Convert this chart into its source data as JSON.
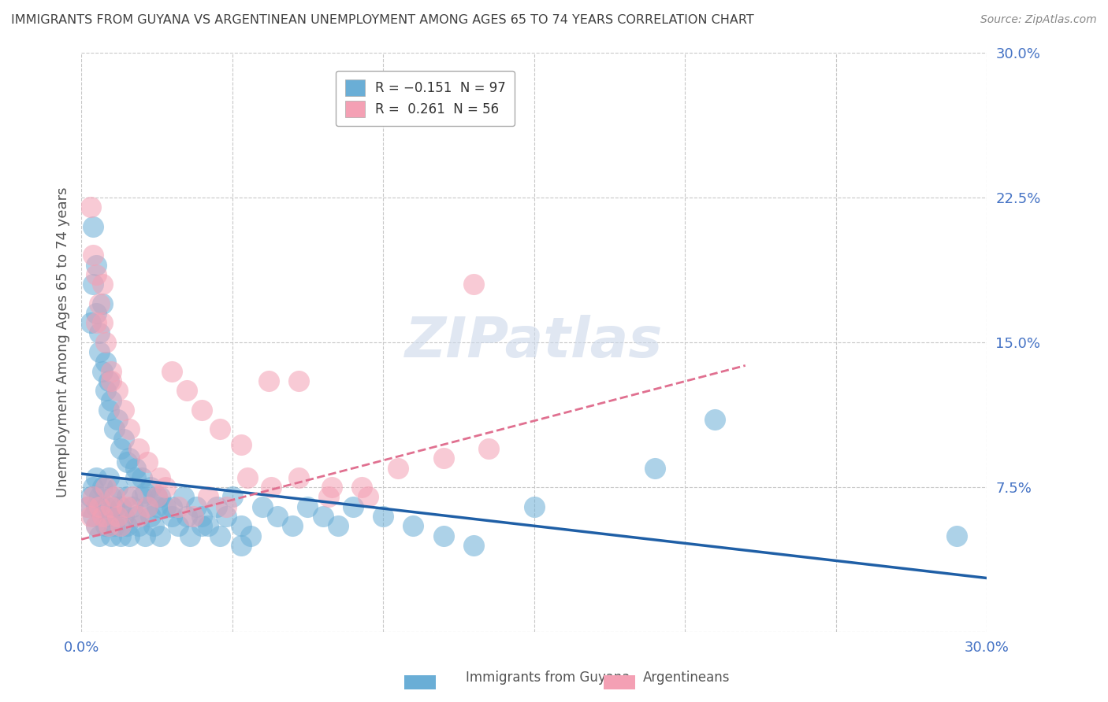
{
  "title": "IMMIGRANTS FROM GUYANA VS ARGENTINEAN UNEMPLOYMENT AMONG AGES 65 TO 74 YEARS CORRELATION CHART",
  "source": "Source: ZipAtlas.com",
  "ylabel": "Unemployment Among Ages 65 to 74 years",
  "xlim": [
    0.0,
    0.3
  ],
  "ylim": [
    0.0,
    0.3
  ],
  "xtick_positions": [
    0.0,
    0.05,
    0.1,
    0.15,
    0.2,
    0.25,
    0.3
  ],
  "ytick_positions": [
    0.0,
    0.075,
    0.15,
    0.225,
    0.3
  ],
  "xtick_labels": [
    "0.0%",
    "",
    "",
    "",
    "",
    "",
    "30.0%"
  ],
  "ytick_labels": [
    "",
    "7.5%",
    "15.0%",
    "22.5%",
    "30.0%"
  ],
  "blue_R": -0.151,
  "blue_N": 97,
  "pink_R": 0.261,
  "pink_N": 56,
  "blue_color": "#6aaed6",
  "pink_color": "#f4a0b4",
  "blue_line_color": "#1f5fa6",
  "pink_line_color": "#e07090",
  "watermark": "ZIPatlas",
  "background_color": "#ffffff",
  "grid_color": "#c8c8c8",
  "blue_line_y0": 0.082,
  "blue_line_y1": 0.028,
  "pink_line_x0": 0.0,
  "pink_line_x1": 0.22,
  "pink_line_y0": 0.048,
  "pink_line_y1": 0.138,
  "blue_scatter_x": [
    0.002,
    0.003,
    0.004,
    0.004,
    0.005,
    0.005,
    0.005,
    0.006,
    0.006,
    0.007,
    0.007,
    0.008,
    0.008,
    0.009,
    0.009,
    0.01,
    0.01,
    0.011,
    0.011,
    0.012,
    0.012,
    0.013,
    0.013,
    0.014,
    0.015,
    0.015,
    0.016,
    0.017,
    0.018,
    0.019,
    0.02,
    0.021,
    0.022,
    0.023,
    0.024,
    0.025,
    0.026,
    0.028,
    0.03,
    0.032,
    0.034,
    0.036,
    0.038,
    0.04,
    0.042,
    0.045,
    0.048,
    0.05,
    0.053,
    0.056,
    0.06,
    0.065,
    0.07,
    0.075,
    0.08,
    0.085,
    0.09,
    0.1,
    0.11,
    0.12,
    0.003,
    0.004,
    0.005,
    0.006,
    0.007,
    0.008,
    0.009,
    0.01,
    0.012,
    0.014,
    0.016,
    0.018,
    0.02,
    0.023,
    0.026,
    0.03,
    0.035,
    0.04,
    0.046,
    0.053,
    0.004,
    0.005,
    0.006,
    0.007,
    0.008,
    0.009,
    0.011,
    0.013,
    0.015,
    0.018,
    0.021,
    0.025,
    0.15,
    0.19,
    0.21,
    0.29,
    0.13
  ],
  "blue_scatter_y": [
    0.065,
    0.07,
    0.06,
    0.075,
    0.055,
    0.065,
    0.08,
    0.05,
    0.07,
    0.06,
    0.075,
    0.055,
    0.065,
    0.06,
    0.08,
    0.05,
    0.07,
    0.055,
    0.065,
    0.06,
    0.075,
    0.05,
    0.065,
    0.06,
    0.055,
    0.07,
    0.05,
    0.065,
    0.06,
    0.055,
    0.07,
    0.05,
    0.065,
    0.06,
    0.055,
    0.07,
    0.05,
    0.065,
    0.06,
    0.055,
    0.07,
    0.05,
    0.065,
    0.06,
    0.055,
    0.065,
    0.06,
    0.07,
    0.055,
    0.05,
    0.065,
    0.06,
    0.055,
    0.065,
    0.06,
    0.055,
    0.065,
    0.06,
    0.055,
    0.05,
    0.16,
    0.18,
    0.19,
    0.155,
    0.17,
    0.14,
    0.13,
    0.12,
    0.11,
    0.1,
    0.09,
    0.085,
    0.08,
    0.075,
    0.07,
    0.065,
    0.06,
    0.055,
    0.05,
    0.045,
    0.21,
    0.165,
    0.145,
    0.135,
    0.125,
    0.115,
    0.105,
    0.095,
    0.088,
    0.08,
    0.072,
    0.065,
    0.065,
    0.085,
    0.11,
    0.05,
    0.045
  ],
  "pink_scatter_x": [
    0.002,
    0.003,
    0.004,
    0.005,
    0.006,
    0.007,
    0.008,
    0.009,
    0.01,
    0.011,
    0.012,
    0.013,
    0.015,
    0.017,
    0.019,
    0.022,
    0.025,
    0.028,
    0.032,
    0.037,
    0.042,
    0.048,
    0.055,
    0.063,
    0.072,
    0.082,
    0.093,
    0.105,
    0.12,
    0.135,
    0.003,
    0.004,
    0.005,
    0.006,
    0.007,
    0.008,
    0.01,
    0.012,
    0.014,
    0.016,
    0.019,
    0.022,
    0.026,
    0.03,
    0.035,
    0.04,
    0.046,
    0.053,
    0.062,
    0.072,
    0.083,
    0.095,
    0.005,
    0.007,
    0.01,
    0.13
  ],
  "pink_scatter_y": [
    0.065,
    0.06,
    0.07,
    0.055,
    0.065,
    0.06,
    0.075,
    0.055,
    0.065,
    0.07,
    0.06,
    0.055,
    0.065,
    0.07,
    0.06,
    0.065,
    0.07,
    0.075,
    0.065,
    0.06,
    0.07,
    0.065,
    0.08,
    0.075,
    0.08,
    0.07,
    0.075,
    0.085,
    0.09,
    0.095,
    0.22,
    0.195,
    0.185,
    0.17,
    0.16,
    0.15,
    0.135,
    0.125,
    0.115,
    0.105,
    0.095,
    0.088,
    0.08,
    0.135,
    0.125,
    0.115,
    0.105,
    0.097,
    0.13,
    0.13,
    0.075,
    0.07,
    0.16,
    0.18,
    0.13,
    0.18
  ]
}
